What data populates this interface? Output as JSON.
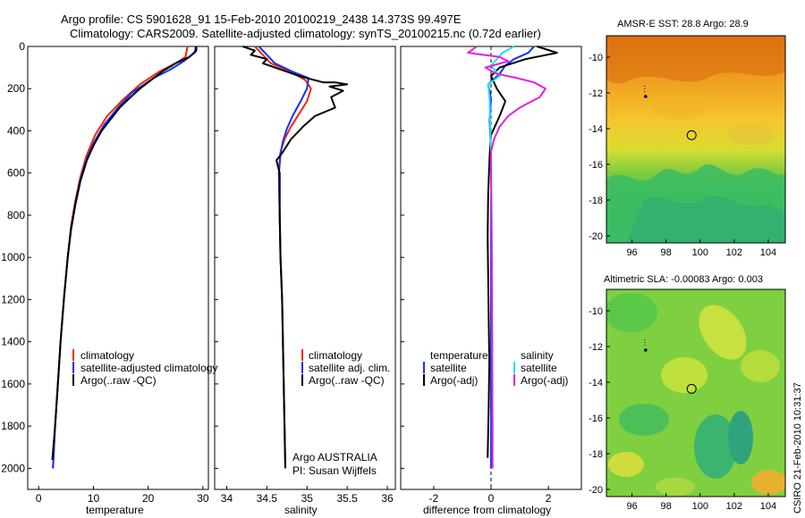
{
  "header": {
    "line1": "Argo profile: CS 5901628_91 15-Feb-2010 20100219_2438 14.373S 99.497E",
    "line2": "Climatology: CARS2009. Satellite-adjusted climatology: synTS_20100215.nc (0.72d earlier)"
  },
  "credit": "CSIRO 21-Feb-2010 10:31:37",
  "colors": {
    "clim": "#ff2200",
    "sat": "#1030ff",
    "argo": "#000000",
    "satsal": "#22e0f0",
    "argosal": "#e020e0"
  },
  "chart_data": [
    {
      "type": "line",
      "id": "temperature",
      "xlabel": "temperature",
      "xlim": [
        -2,
        31
      ],
      "ylim": [
        2100,
        0
      ],
      "xticks": [
        0,
        10,
        20,
        30
      ],
      "yticks": [
        0,
        200,
        400,
        600,
        800,
        1000,
        1200,
        1400,
        1600,
        1800,
        2000
      ],
      "legend": [
        "climatology",
        "satellite-adjusted climatology",
        "Argo(..raw -QC)"
      ],
      "series": [
        {
          "name": "climatology",
          "color": "clim",
          "points": [
            [
              27.2,
              0
            ],
            [
              26.8,
              50
            ],
            [
              25,
              80
            ],
            [
              22,
              120
            ],
            [
              18.5,
              180
            ],
            [
              15.5,
              250
            ],
            [
              12.5,
              330
            ],
            [
              10.3,
              420
            ],
            [
              8.7,
              520
            ],
            [
              7.6,
              620
            ],
            [
              6.7,
              730
            ],
            [
              5.9,
              850
            ],
            [
              5.3,
              1000
            ],
            [
              4.6,
              1200
            ],
            [
              4.0,
              1400
            ],
            [
              3.5,
              1600
            ],
            [
              3.0,
              1800
            ],
            [
              2.6,
              2000
            ]
          ]
        },
        {
          "name": "satellite-adjusted climatology",
          "color": "sat",
          "points": [
            [
              28.7,
              0
            ],
            [
              28.5,
              30
            ],
            [
              26.5,
              70
            ],
            [
              24,
              110
            ],
            [
              21,
              150
            ],
            [
              17,
              220
            ],
            [
              14.5,
              290
            ],
            [
              12,
              370
            ],
            [
              10.2,
              450
            ],
            [
              8.8,
              530
            ],
            [
              7.6,
              630
            ],
            [
              6.7,
              740
            ],
            [
              5.9,
              860
            ],
            [
              5.3,
              1000
            ],
            [
              4.6,
              1200
            ],
            [
              4.0,
              1400
            ],
            [
              3.5,
              1600
            ],
            [
              3.0,
              1800
            ],
            [
              2.6,
              2000
            ]
          ]
        },
        {
          "name": "Argo(..raw -QC)",
          "color": "argo",
          "points": [
            [
              28.8,
              0
            ],
            [
              28.8,
              20
            ],
            [
              27.5,
              50
            ],
            [
              25,
              80
            ],
            [
              22.5,
              120
            ],
            [
              20.5,
              160
            ],
            [
              18.5,
              200
            ],
            [
              16.8,
              240
            ],
            [
              14.8,
              290
            ],
            [
              13,
              350
            ],
            [
              11.5,
              400
            ],
            [
              10,
              470
            ],
            [
              8.8,
              540
            ],
            [
              7.6,
              640
            ],
            [
              6.7,
              750
            ],
            [
              5.9,
              870
            ],
            [
              5.3,
              1000
            ],
            [
              4.6,
              1200
            ],
            [
              4.0,
              1400
            ],
            [
              3.5,
              1600
            ],
            [
              3.0,
              1800
            ],
            [
              2.5,
              1960
            ]
          ]
        }
      ]
    },
    {
      "type": "line",
      "id": "salinity",
      "xlabel": "salinity",
      "xlim": [
        33.85,
        36.1
      ],
      "ylim": [
        2100,
        0
      ],
      "xticks": [
        34,
        34.5,
        35,
        35.5,
        36
      ],
      "legend": [
        "climatology",
        "satellite adj. clim.",
        "Argo(..raw -QC)"
      ],
      "annotation": [
        "Argo AUSTRALIA",
        "PI: Susan Wijffels"
      ],
      "series": [
        {
          "name": "climatology",
          "color": "clim",
          "points": [
            [
              34.35,
              0
            ],
            [
              34.45,
              40
            ],
            [
              34.55,
              80
            ],
            [
              34.8,
              120
            ],
            [
              34.98,
              160
            ],
            [
              35.05,
              200
            ],
            [
              35.0,
              260
            ],
            [
              34.9,
              320
            ],
            [
              34.8,
              380
            ],
            [
              34.72,
              440
            ],
            [
              34.67,
              500
            ],
            [
              34.65,
              600
            ],
            [
              34.66,
              800
            ],
            [
              34.67,
              1000
            ],
            [
              34.69,
              1200
            ],
            [
              34.7,
              1400
            ],
            [
              34.71,
              1600
            ],
            [
              34.72,
              1800
            ],
            [
              34.73,
              2000
            ]
          ]
        },
        {
          "name": "satellite adj. clim.",
          "color": "sat",
          "points": [
            [
              34.4,
              0
            ],
            [
              34.5,
              40
            ],
            [
              34.6,
              80
            ],
            [
              34.82,
              120
            ],
            [
              35.02,
              150
            ],
            [
              35.0,
              200
            ],
            [
              34.92,
              260
            ],
            [
              34.82,
              330
            ],
            [
              34.75,
              390
            ],
            [
              34.7,
              450
            ],
            [
              34.67,
              510
            ],
            [
              34.65,
              600
            ],
            [
              34.66,
              800
            ],
            [
              34.67,
              1000
            ],
            [
              34.69,
              1200
            ],
            [
              34.7,
              1400
            ],
            [
              34.71,
              1600
            ],
            [
              34.72,
              1800
            ],
            [
              34.73,
              2000
            ]
          ]
        },
        {
          "name": "Argo(..raw -QC)",
          "color": "argo",
          "points": [
            [
              34.2,
              0
            ],
            [
              34.35,
              20
            ],
            [
              34.3,
              40
            ],
            [
              34.5,
              60
            ],
            [
              34.45,
              80
            ],
            [
              34.6,
              100
            ],
            [
              34.75,
              120
            ],
            [
              34.9,
              140
            ],
            [
              35.1,
              160
            ],
            [
              35.2,
              170
            ],
            [
              35.35,
              170
            ],
            [
              35.5,
              180
            ],
            [
              35.28,
              190
            ],
            [
              35.45,
              210
            ],
            [
              35.3,
              240
            ],
            [
              35.35,
              290
            ],
            [
              35.1,
              330
            ],
            [
              34.95,
              380
            ],
            [
              34.8,
              440
            ],
            [
              34.7,
              500
            ],
            [
              34.62,
              540
            ],
            [
              34.66,
              600
            ],
            [
              34.66,
              800
            ],
            [
              34.67,
              1000
            ],
            [
              34.69,
              1200
            ],
            [
              34.7,
              1400
            ],
            [
              34.71,
              1600
            ],
            [
              34.72,
              1800
            ],
            [
              34.73,
              2000
            ]
          ]
        }
      ]
    },
    {
      "type": "line",
      "id": "difference",
      "xlabel": "difference from climatology",
      "xlim": [
        -3.15,
        3.15
      ],
      "ylim": [
        2100,
        0
      ],
      "xticks": [
        -2,
        0,
        2
      ],
      "legend_left_title": "temperature",
      "legend_right_title": "salinity",
      "legend_left": [
        "satellite",
        "Argo(-adj)"
      ],
      "legend_right": [
        "satellite",
        "Argo(-adj)"
      ],
      "series": [
        {
          "name": "temperature satellite",
          "color": "sat",
          "points": [
            [
              1.5,
              0
            ],
            [
              1.3,
              30
            ],
            [
              0.8,
              60
            ],
            [
              0.5,
              90
            ],
            [
              0.3,
              130
            ],
            [
              -0.1,
              180
            ],
            [
              0.0,
              250
            ],
            [
              -0.05,
              350
            ],
            [
              0.0,
              500
            ],
            [
              0.0,
              700
            ],
            [
              0.0,
              1000
            ],
            [
              0.0,
              1400
            ],
            [
              0.0,
              1800
            ],
            [
              0.0,
              2000
            ]
          ]
        },
        {
          "name": "temperature Argo(-adj)",
          "color": "argo",
          "points": [
            [
              1.6,
              0
            ],
            [
              2.3,
              30
            ],
            [
              1.2,
              60
            ],
            [
              0.3,
              100
            ],
            [
              0.0,
              140
            ],
            [
              0.2,
              200
            ],
            [
              0.5,
              260
            ],
            [
              0.3,
              330
            ],
            [
              0.0,
              420
            ],
            [
              -0.05,
              520
            ],
            [
              -0.1,
              700
            ],
            [
              -0.12,
              900
            ],
            [
              -0.1,
              1100
            ],
            [
              -0.08,
              1300
            ],
            [
              -0.06,
              1500
            ],
            [
              -0.08,
              1700
            ],
            [
              -0.12,
              1950
            ]
          ]
        },
        {
          "name": "salinity satellite",
          "color": "satsal",
          "points": [
            [
              0.8,
              0
            ],
            [
              0.4,
              30
            ],
            [
              0.2,
              60
            ],
            [
              0.0,
              90
            ],
            [
              0.3,
              140
            ],
            [
              -0.1,
              180
            ],
            [
              -0.05,
              250
            ],
            [
              -0.03,
              350
            ],
            [
              0.0,
              500
            ],
            [
              0.02,
              700
            ],
            [
              0.03,
              1000
            ],
            [
              0.04,
              1400
            ],
            [
              0.05,
              1800
            ],
            [
              0.05,
              2000
            ]
          ]
        },
        {
          "name": "salinity Argo(-adj)",
          "color": "argosal",
          "points": [
            [
              -0.5,
              0
            ],
            [
              -0.8,
              30
            ],
            [
              0.3,
              50
            ],
            [
              0.6,
              70
            ],
            [
              -0.2,
              100
            ],
            [
              0.2,
              130
            ],
            [
              0.9,
              150
            ],
            [
              1.5,
              170
            ],
            [
              1.9,
              200
            ],
            [
              1.7,
              240
            ],
            [
              1.0,
              290
            ],
            [
              0.6,
              330
            ],
            [
              0.3,
              380
            ],
            [
              0.1,
              440
            ],
            [
              0.0,
              500
            ],
            [
              0.0,
              700
            ],
            [
              0.02,
              900
            ],
            [
              0.03,
              1200
            ],
            [
              0.04,
              1500
            ],
            [
              0.05,
              1800
            ],
            [
              0.05,
              2000
            ]
          ]
        }
      ]
    },
    {
      "type": "heatmap",
      "id": "sst-map",
      "title": "AMSR-E SST: 28.8 Argo: 28.9",
      "xlim": [
        94.5,
        105
      ],
      "ylim": [
        -20.4,
        -8.8
      ],
      "xticks": [
        96,
        98,
        100,
        102,
        104
      ],
      "yticks": [
        -10,
        -12,
        -14,
        -16,
        -18,
        -20
      ],
      "float_pos": [
        99.5,
        -14.37
      ],
      "prev_pos": [
        96.8,
        -12.2
      ]
    },
    {
      "type": "heatmap",
      "id": "sla-map",
      "title": "Altimetric SLA: -0.00083 Argo: 0.003",
      "xlim": [
        94.5,
        105
      ],
      "ylim": [
        -20.4,
        -8.8
      ],
      "xticks": [
        96,
        98,
        100,
        102,
        104
      ],
      "yticks": [
        -10,
        -12,
        -14,
        -16,
        -18,
        -20
      ],
      "float_pos": [
        99.5,
        -14.37
      ],
      "prev_pos": [
        96.8,
        -12.2
      ]
    }
  ]
}
